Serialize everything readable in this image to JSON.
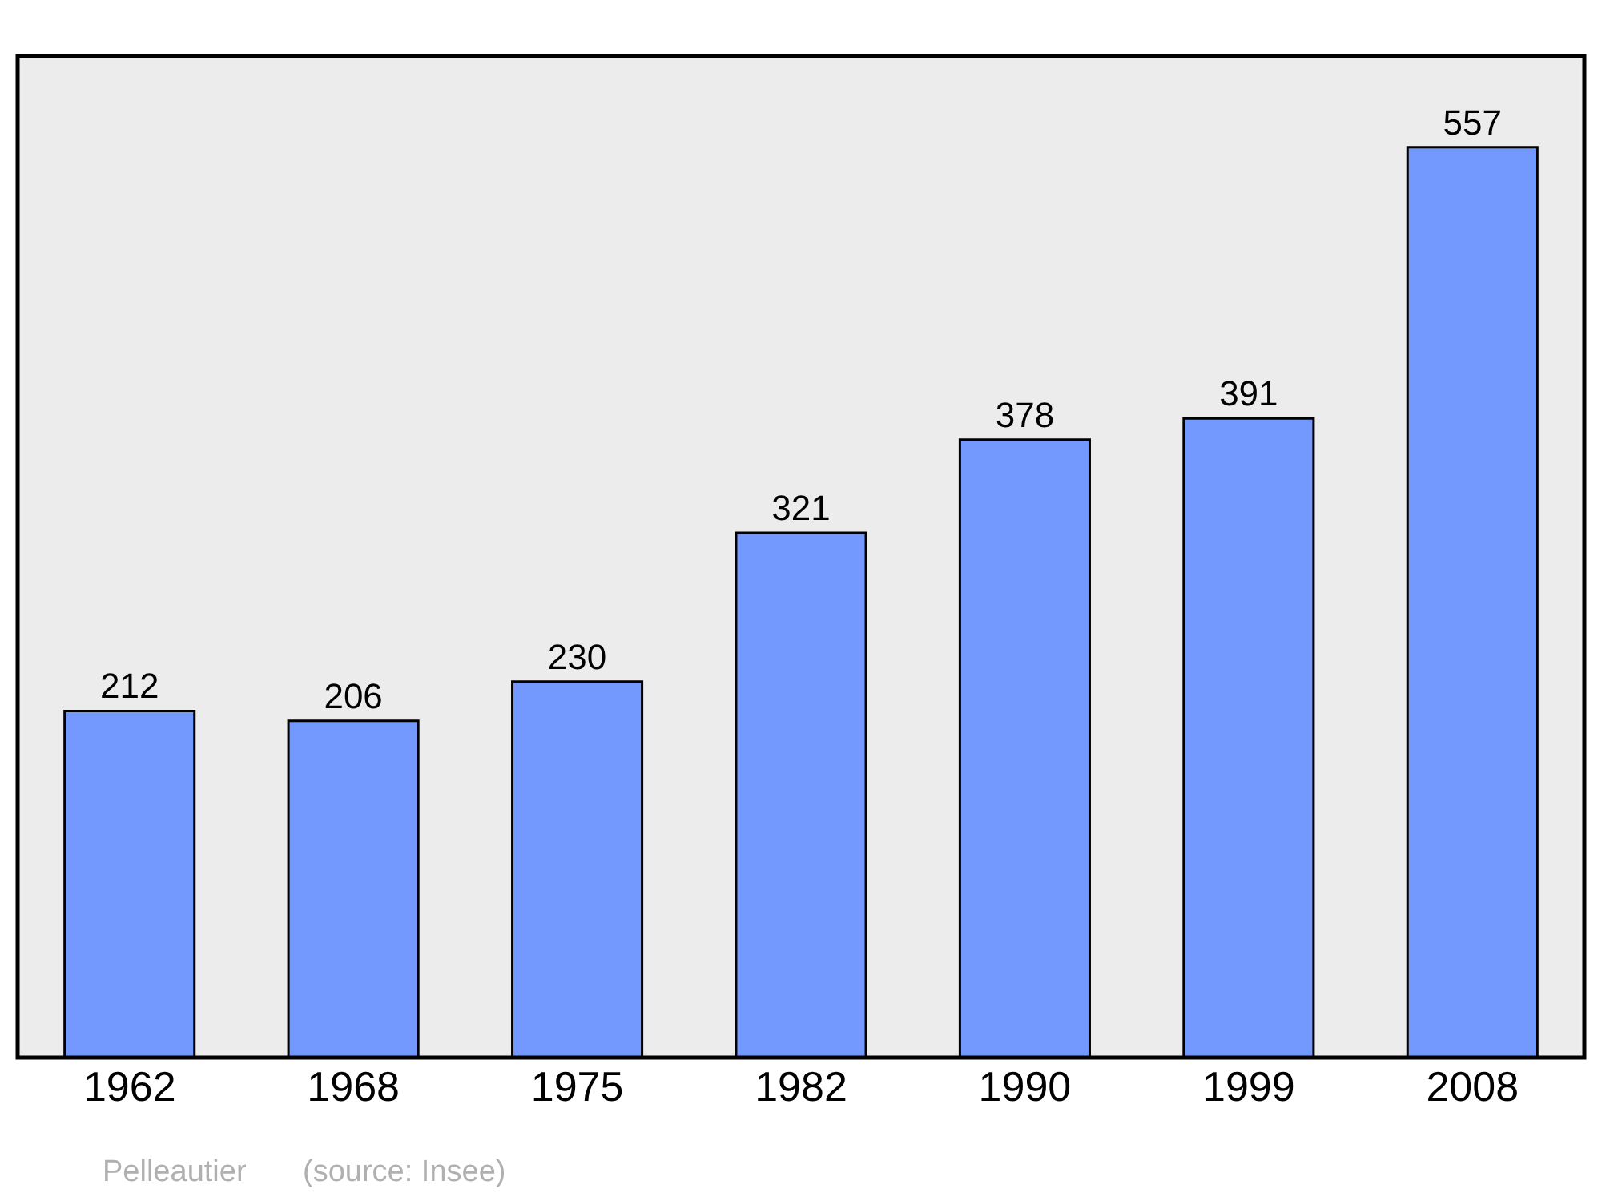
{
  "chart_data": {
    "type": "bar",
    "categories": [
      "1962",
      "1968",
      "1975",
      "1982",
      "1990",
      "1999",
      "2008"
    ],
    "values": [
      212,
      206,
      230,
      321,
      378,
      391,
      557
    ],
    "color": "#7399ff",
    "data_labels": true,
    "grid": false,
    "legend": false,
    "annotations": [
      "Pelleautier",
      "(source: Insee)"
    ]
  }
}
